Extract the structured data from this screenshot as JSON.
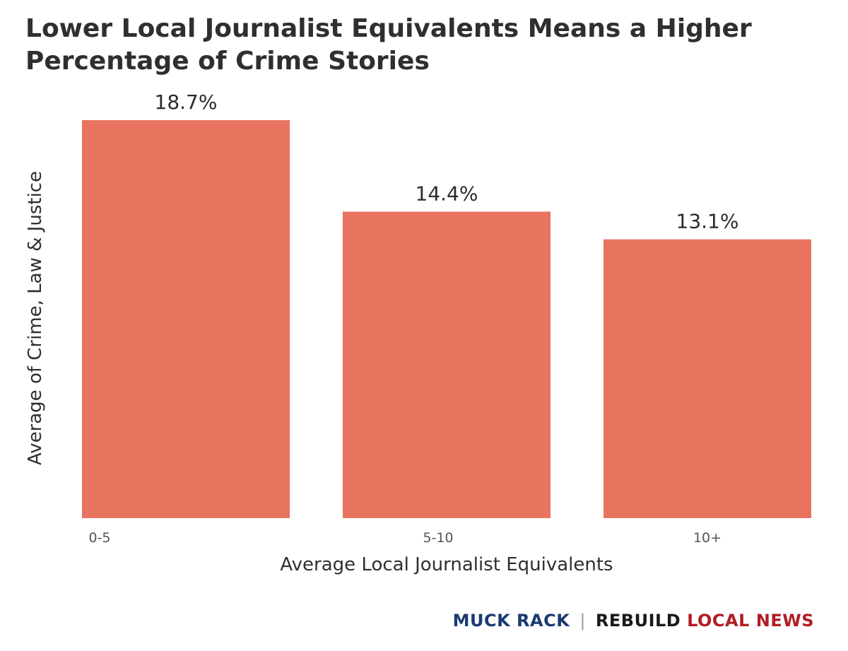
{
  "title": "Lower Local Journalist Equivalents Means a Higher Percentage of Crime Stories",
  "footer": {
    "brand1": "MUCK RACK",
    "brand2a": "REBUILD",
    "brand2b": "LOCAL NEWS",
    "brand1_color": "#1b3a73",
    "brand2a_color": "#1a1a1a",
    "brand2b_color": "#b11c24"
  },
  "chart_data": {
    "type": "bar",
    "title": "Lower Local Journalist Equivalents Means a Higher Percentage of Crime Stories",
    "xlabel": "Average Local Journalist Equivalents",
    "ylabel": "Average of Crime, Law & Justice",
    "categories": [
      "0-5",
      "5-10",
      "10+"
    ],
    "values": [
      18.7,
      14.4,
      13.1
    ],
    "value_labels": [
      "18.7%",
      "14.4%",
      "13.1%"
    ],
    "ylim": [
      0,
      18.7
    ],
    "bar_color": "#e8735f",
    "grid": false,
    "legend": "none"
  }
}
